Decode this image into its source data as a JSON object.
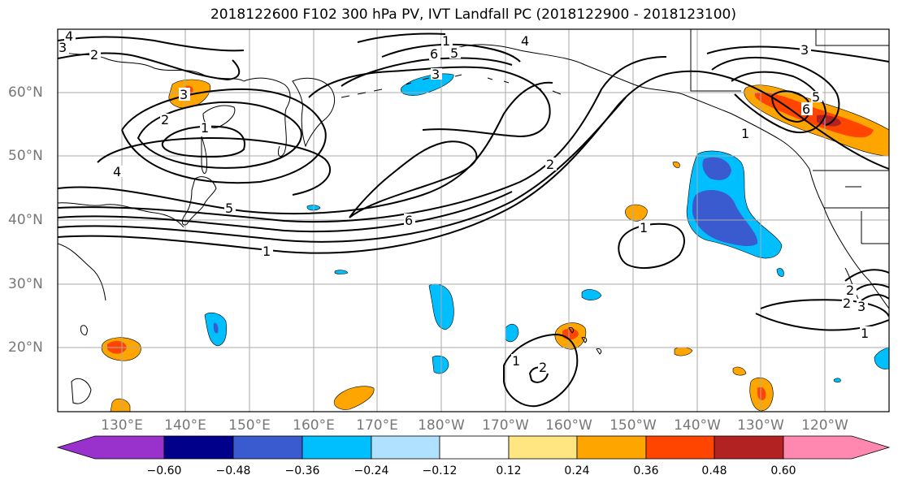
{
  "title": "2018122600 F102 300 hPa PV, IVT Landfall PC (2018122900 - 2018123100)",
  "lat_labels": [
    "60°N",
    "50°N",
    "40°N",
    "30°N",
    "20°N"
  ],
  "lon_labels": [
    "130°E",
    "140°E",
    "150°E",
    "160°E",
    "170°E",
    "180°W",
    "170°W",
    "160°W",
    "150°W",
    "140°W",
    "130°W",
    "120°W"
  ],
  "colorbar": {
    "ticks": [
      "−0.60",
      "−0.48",
      "−0.36",
      "−0.24",
      "−0.12",
      "0.12",
      "0.24",
      "0.36",
      "0.48",
      "0.60"
    ],
    "colors": [
      "#9932cc",
      "#00008b",
      "#3a5bd0",
      "#00bfff",
      "#b0e2ff",
      "#ffffff",
      "#ffe680",
      "#ffa500",
      "#ff4500",
      "#b22222",
      "#ff88b0"
    ]
  },
  "contour_labels": [
    "4",
    "3",
    "2",
    "3",
    "2",
    "1",
    "4",
    "5",
    "1",
    "1",
    "4",
    "6",
    "5",
    "3",
    "6",
    "2",
    "1",
    "3",
    "6",
    "5",
    "2",
    "1",
    "2",
    "3",
    "1",
    "1",
    "2"
  ]
}
